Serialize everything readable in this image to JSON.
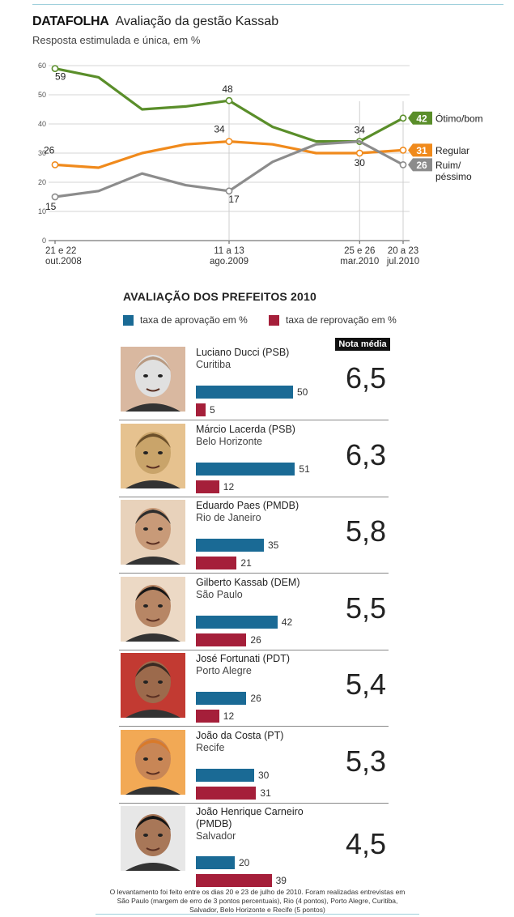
{
  "header": {
    "brand": "DATAFOLHA",
    "title": "Avaliação da gestão Kassab",
    "subtitle": "Resposta estimulada e única, em %"
  },
  "chart_data": {
    "type": "line",
    "x_ticks": [
      {
        "index": 0,
        "lines": [
          "21 e 22",
          "out.2008"
        ]
      },
      {
        "index": 4,
        "lines": [
          "11 a 13",
          "ago.2009"
        ]
      },
      {
        "index": 7,
        "lines": [
          "25 e 26",
          "mar.2010"
        ]
      },
      {
        "index": 8,
        "lines": [
          "20 a 23",
          "jul.2010"
        ]
      }
    ],
    "ylim": [
      0,
      60
    ],
    "yticks": [
      0,
      10,
      20,
      30,
      40,
      50,
      60
    ],
    "grid": true,
    "series": [
      {
        "name": "Ótimo/bom",
        "color": "#5a8e2a",
        "values": [
          59,
          56,
          45,
          46,
          48,
          39,
          34,
          34,
          42
        ],
        "labels": [
          {
            "index": 0,
            "text": "59"
          },
          {
            "index": 4,
            "text": "48"
          },
          {
            "index": 7,
            "text": "34"
          }
        ],
        "end_badge": "42"
      },
      {
        "name": "Regular",
        "color": "#f08a1c",
        "values": [
          26,
          25,
          30,
          33,
          34,
          33,
          30,
          30,
          31
        ],
        "labels": [
          {
            "index": 0,
            "text": "26"
          },
          {
            "index": 4,
            "text": "34"
          },
          {
            "index": 7,
            "text": "30"
          }
        ],
        "end_badge": "31"
      },
      {
        "name": "Ruim/ péssimo",
        "color": "#8c8c8c",
        "values": [
          15,
          17,
          23,
          19,
          17,
          27,
          33,
          34,
          26
        ],
        "labels": [
          {
            "index": 0,
            "text": "15"
          },
          {
            "index": 4,
            "text": "17"
          }
        ],
        "end_badge": "26"
      }
    ]
  },
  "section": {
    "title": "AVALIAÇÃO DOS PREFEITOS 2010",
    "legend_approval": "taxa de aprovação em %",
    "legend_disapproval": "taxa de reprovação em %",
    "nota_header": "Nota média",
    "approval_color": "#1a6a95",
    "disapproval_color": "#a51f3a",
    "bar_max": 50
  },
  "mayors": [
    {
      "name": "Luciano Ducci (PSB)",
      "city": "Curitiba",
      "approval": 50,
      "disapproval": 5,
      "score": "6,5"
    },
    {
      "name": "Márcio Lacerda (PSB)",
      "city": "Belo Horizonte",
      "approval": 51,
      "disapproval": 12,
      "score": "6,3"
    },
    {
      "name": "Eduardo Paes (PMDB)",
      "city": "Rio de Janeiro",
      "approval": 35,
      "disapproval": 21,
      "score": "5,8"
    },
    {
      "name": "Gilberto Kassab (DEM)",
      "city": "São Paulo",
      "approval": 42,
      "disapproval": 26,
      "score": "5,5"
    },
    {
      "name": "José Fortunati (PDT)",
      "city": "Porto Alegre",
      "approval": 26,
      "disapproval": 12,
      "score": "5,4"
    },
    {
      "name": "João da Costa (PT)",
      "city": "Recife",
      "approval": 30,
      "disapproval": 31,
      "score": "5,3"
    },
    {
      "name": "João Henrique Carneiro (PMDB)",
      "city": "Salvador",
      "approval": 20,
      "disapproval": 39,
      "score": "4,5"
    }
  ],
  "footnote": "O levantamento foi feito entre os dias 20 e 23 de julho de 2010. Foram realizadas entrevistas em São Paulo (margem de erro de 3 pontos percentuais), Rio (4 pontos), Porto Alegre, Curitiba, Salvador, Belo Horizonte e Recife (5 pontos)"
}
